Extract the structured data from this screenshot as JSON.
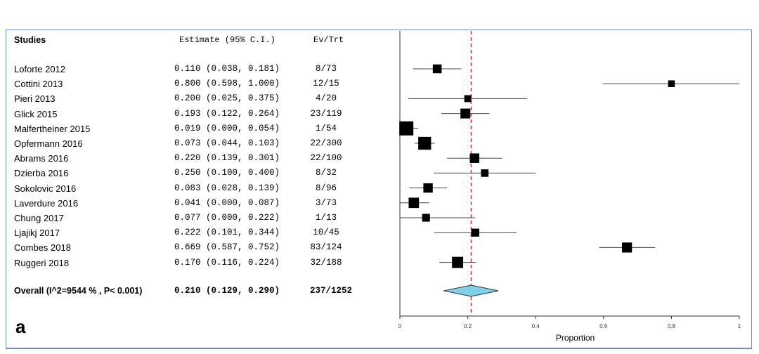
{
  "header": {
    "studies_label": "Studies",
    "estimate_label": "Estimate (95% C.I.)",
    "evtrt_label": "Ev/Trt"
  },
  "panel_letter": "a",
  "chart_data": {
    "type": "forest",
    "xlabel": "Proportion",
    "xlim": [
      0,
      1
    ],
    "xticks": [
      0,
      0.2,
      0.4,
      0.6,
      0.8,
      1
    ],
    "xtick_labels": [
      "0",
      "0.2",
      "0.4",
      "0.6",
      "0.8",
      "1"
    ],
    "reference_line": 0.21,
    "reference_line_color": "#e0303a",
    "diamond_color": "#7fd0e6",
    "studies": [
      {
        "name": "Loforte 2012",
        "estimate_text": "0.110 (0.038, 0.181)",
        "evtrt": "8/73",
        "est": 0.11,
        "lo": 0.038,
        "hi": 0.181,
        "weight": 73
      },
      {
        "name": "Cottini 2013",
        "estimate_text": "0.800 (0.598, 1.000)",
        "evtrt": "12/15",
        "est": 0.8,
        "lo": 0.598,
        "hi": 1.0,
        "weight": 15
      },
      {
        "name": "Pieri 2013",
        "estimate_text": "0.200 (0.025, 0.375)",
        "evtrt": "4/20",
        "est": 0.2,
        "lo": 0.025,
        "hi": 0.375,
        "weight": 20
      },
      {
        "name": "Glick 2015",
        "estimate_text": "0.193 (0.122, 0.264)",
        "evtrt": "23/119",
        "est": 0.193,
        "lo": 0.122,
        "hi": 0.264,
        "weight": 119
      },
      {
        "name": "Malfertheiner 2015",
        "estimate_text": "0.019 (0.000, 0.054)",
        "evtrt": "1/54",
        "est": 0.019,
        "lo": 0.0,
        "hi": 0.054,
        "weight": 400
      },
      {
        "name": "Opfermann 2016",
        "estimate_text": "0.073 (0.044, 0.103)",
        "evtrt": "22/300",
        "est": 0.073,
        "lo": 0.044,
        "hi": 0.103,
        "weight": 300
      },
      {
        "name": "Abrams 2016",
        "estimate_text": "0.220 (0.139, 0.301)",
        "evtrt": "22/100",
        "est": 0.22,
        "lo": 0.139,
        "hi": 0.301,
        "weight": 100
      },
      {
        "name": "Dzierba 2016",
        "estimate_text": "0.250 (0.100, 0.400)",
        "evtrt": "8/32",
        "est": 0.25,
        "lo": 0.1,
        "hi": 0.4,
        "weight": 32
      },
      {
        "name": "Sokolovic 2016",
        "estimate_text": "0.083 (0.028, 0.139)",
        "evtrt": "8/96",
        "est": 0.083,
        "lo": 0.028,
        "hi": 0.139,
        "weight": 96
      },
      {
        "name": "Laverdure 2016",
        "estimate_text": "0.041 (0.000, 0.087)",
        "evtrt": "3/73",
        "est": 0.041,
        "lo": 0.0,
        "hi": 0.087,
        "weight": 140
      },
      {
        "name": "Chung 2017",
        "estimate_text": "0.077 (0.000, 0.222)",
        "evtrt": "1/13",
        "est": 0.077,
        "lo": 0.0,
        "hi": 0.222,
        "weight": 40
      },
      {
        "name": "Ljajikj 2017",
        "estimate_text": "0.222 (0.101, 0.344)",
        "evtrt": "10/45",
        "est": 0.222,
        "lo": 0.101,
        "hi": 0.344,
        "weight": 45
      },
      {
        "name": "Combes 2018",
        "estimate_text": "0.669 (0.587, 0.752)",
        "evtrt": "83/124",
        "est": 0.669,
        "lo": 0.587,
        "hi": 0.752,
        "weight": 124
      },
      {
        "name": "Ruggeri 2018",
        "estimate_text": "0.170 (0.116, 0.224)",
        "evtrt": "32/188",
        "est": 0.17,
        "lo": 0.116,
        "hi": 0.224,
        "weight": 188
      }
    ],
    "overall": {
      "label": "Overall (I^2=9544 % , P< 0.001)",
      "estimate_text": "0.210 (0.129, 0.290)",
      "evtrt": "237/1252",
      "est": 0.21,
      "lo": 0.129,
      "hi": 0.29
    }
  }
}
